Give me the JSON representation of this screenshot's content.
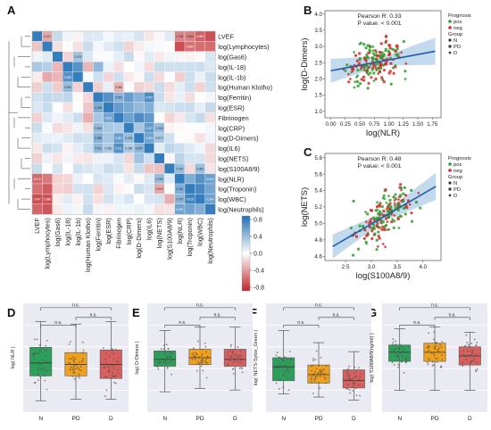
{
  "panel_labels": {
    "A": "A",
    "B": "B",
    "C": "C",
    "D": "D",
    "E": "E",
    "F": "F",
    "G": "G"
  },
  "colors": {
    "heat_pos": "#1f6fb4",
    "heat_neg": "#c0252b",
    "scatter_pos": "#2ca02c",
    "scatter_neg": "#d62728",
    "regression": "#1f5fa8",
    "band": "#a9c9e6",
    "box_N": "#2ca05a",
    "box_PD": "#f0a01a",
    "box_D": "#d95f5f"
  },
  "chart_data": [
    {
      "panel": "A",
      "type": "heatmap",
      "variables": [
        "LVEF",
        "log(Lymphocytes)",
        "log(Gas6)",
        "log(IL-18)",
        "log(IL-1b)",
        "log(Human Klotho)",
        "log(Ferritin)",
        "log(ESR)",
        "Fibrinogen",
        "log(CRP)",
        "log(D-Dimers)",
        "log(IL6)",
        "log(NETS)",
        "log(S100A8/9)",
        "log(NLR)",
        "log(Troponin)",
        "log(WBC)",
        "log(Neutrophils)"
      ],
      "colorbar_ticks": [
        "0.8",
        "0.4",
        "0.0",
        "-0.4",
        "-0.8"
      ],
      "colorbar_range": [
        -1,
        1
      ]
    },
    {
      "panel": "B",
      "type": "scatter",
      "xlabel": "log(NLR)",
      "ylabel": "log(D-Dimers)",
      "annotation": [
        "Pearson R: 0.33",
        "P value: < 0.001"
      ],
      "xticks": [
        "0.00",
        "0.25",
        "0.50",
        "0.75",
        "1.00",
        "1.25",
        "1.50",
        "1.75"
      ],
      "yticks": [
        "1.0",
        "1.5",
        "2.0",
        "2.5",
        "3.0",
        "3.5",
        "4.0"
      ],
      "xlim": [
        -0.1,
        1.9
      ],
      "ylim": [
        0.8,
        4.1
      ],
      "regression": {
        "x0": 0.0,
        "y0": 2.25,
        "x1": 1.8,
        "y1": 2.85
      },
      "n_points": 180
    },
    {
      "panel": "C",
      "type": "scatter",
      "xlabel": "log(S100A8/9)",
      "ylabel": "log(NETS)",
      "annotation": [
        "Pearson R: 0.48",
        "P value: < 0.001"
      ],
      "xticks": [
        "2.5",
        "3.0",
        "3.5",
        "4.0"
      ],
      "yticks": [
        "4.6",
        "4.8",
        "5.0",
        "5.2",
        "5.4",
        "5.6",
        "5.8"
      ],
      "xlim": [
        2.1,
        4.35
      ],
      "ylim": [
        4.55,
        5.85
      ],
      "regression": {
        "x0": 2.25,
        "y0": 4.72,
        "x1": 4.25,
        "y1": 5.45
      },
      "n_points": 180
    },
    {
      "panel": "D",
      "type": "box",
      "ylabel": "log( NLR )",
      "categories": [
        "N",
        "PD",
        "D"
      ],
      "boxes": [
        [
          0.02,
          0.5,
          0.75,
          1.05,
          1.55
        ],
        [
          0.05,
          0.5,
          0.72,
          0.95,
          1.5
        ],
        [
          0.05,
          0.45,
          0.72,
          1.0,
          1.55
        ]
      ],
      "ylim": [
        -0.2,
        1.9
      ],
      "significance": [
        "n.s.",
        "n.s.",
        "n.s."
      ]
    },
    {
      "panel": "E",
      "type": "box",
      "ylabel": "log( D-Dimers )",
      "categories": [
        "N",
        "PD",
        "D"
      ],
      "boxes": [
        [
          1.5,
          2.25,
          2.45,
          2.7,
          3.3
        ],
        [
          1.6,
          2.3,
          2.5,
          2.75,
          3.4
        ],
        [
          1.55,
          2.25,
          2.45,
          2.75,
          3.4
        ]
      ],
      "ylim": [
        0.9,
        4.1
      ],
      "significance": [
        "n.s.",
        "n.s.",
        "n.s."
      ]
    },
    {
      "panel": "F",
      "type": "box",
      "ylabel": "log( NETS-Sytox_Green )",
      "categories": [
        "N",
        "PD",
        "D"
      ],
      "boxes": [
        [
          4.5,
          4.72,
          4.95,
          5.1,
          5.55
        ],
        [
          4.45,
          4.68,
          4.82,
          4.98,
          5.35
        ],
        [
          4.4,
          4.6,
          4.72,
          4.9,
          5.2
        ]
      ],
      "ylim": [
        4.2,
        6.0
      ],
      "significance": [
        "n.s.",
        "n.s.",
        "n.s."
      ]
    },
    {
      "panel": "G",
      "type": "box",
      "ylabel": "log( S100A8/9(ng/ml) )",
      "categories": [
        "N",
        "PD",
        "D"
      ],
      "boxes": [
        [
          2.4,
          3.2,
          3.45,
          3.65,
          4.1
        ],
        [
          2.4,
          3.2,
          3.45,
          3.7,
          4.15
        ],
        [
          2.4,
          3.1,
          3.35,
          3.6,
          4.0
        ]
      ],
      "ylim": [
        1.8,
        4.8
      ],
      "significance": [
        "n.s.",
        "n.s.",
        "n.s."
      ]
    }
  ],
  "legend": {
    "title1": "Prognosis",
    "items1": [
      "pos",
      "neg"
    ],
    "title2": "Group",
    "items2": [
      "N",
      "PD",
      "D"
    ]
  }
}
